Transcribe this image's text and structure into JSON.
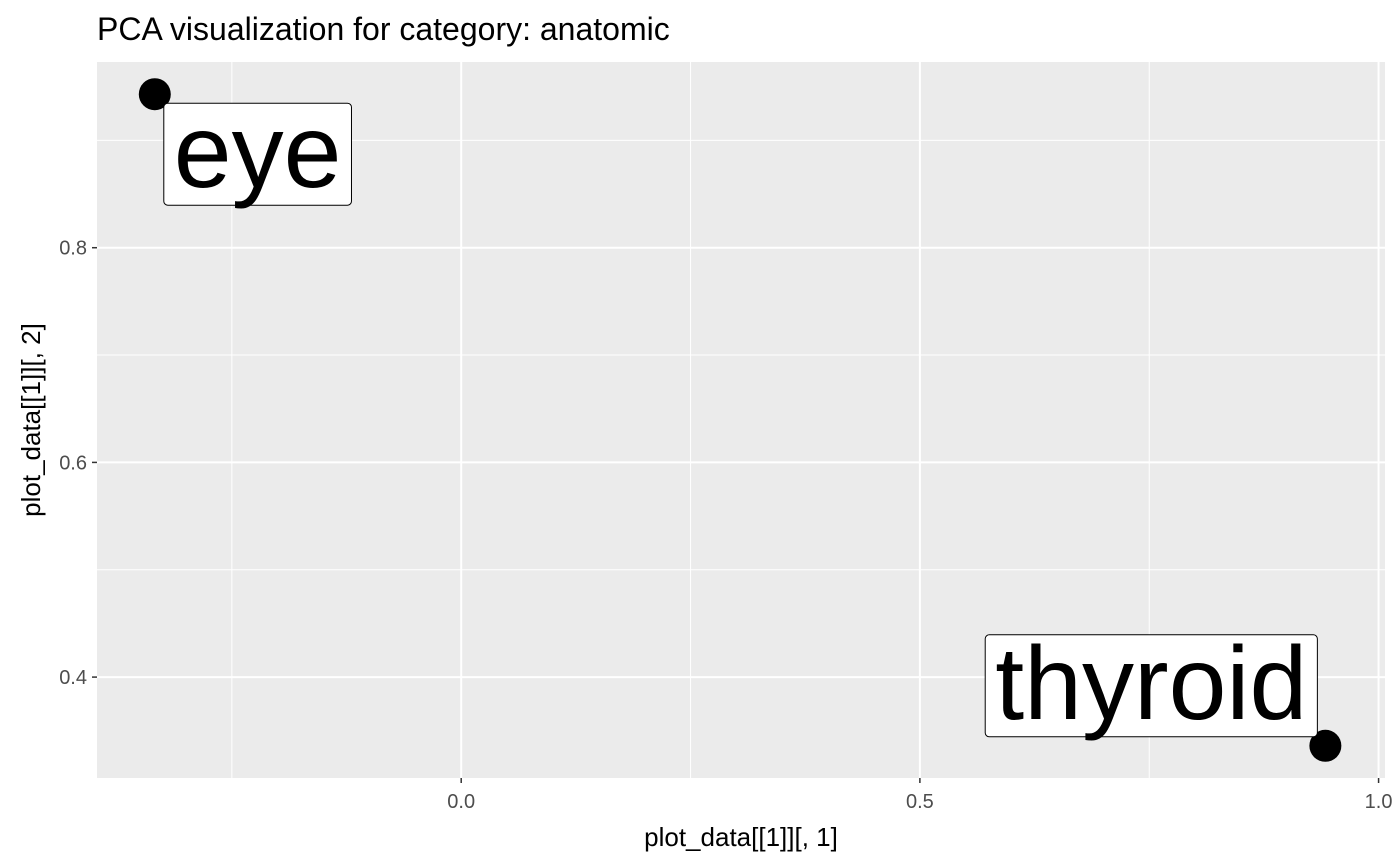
{
  "chart_data": {
    "type": "scatter",
    "title": "PCA visualization for category: anatomic",
    "x_label": "plot_data[[1]][, 1]",
    "y_label": "plot_data[[1]][, 2]",
    "labels": [
      "eye",
      "thyroid"
    ],
    "x": [
      -0.334,
      0.942
    ],
    "y": [
      0.943,
      0.336
    ],
    "color": "#000000",
    "xlim": [
      -0.397,
      1.007
    ],
    "ylim": [
      0.306,
      0.973
    ],
    "xticks": [
      {
        "value": 0,
        "label": "0.0"
      },
      0.5,
      {
        "value": 1,
        "label": "1.0"
      }
    ],
    "yticks": [
      0.4,
      0.6,
      0.8
    ],
    "x_minor_breaks": [
      -0.25,
      0.25,
      0.75
    ],
    "y_minor_breaks": [
      0.3,
      0.5,
      0.7,
      0.9
    ],
    "grid": true
  }
}
